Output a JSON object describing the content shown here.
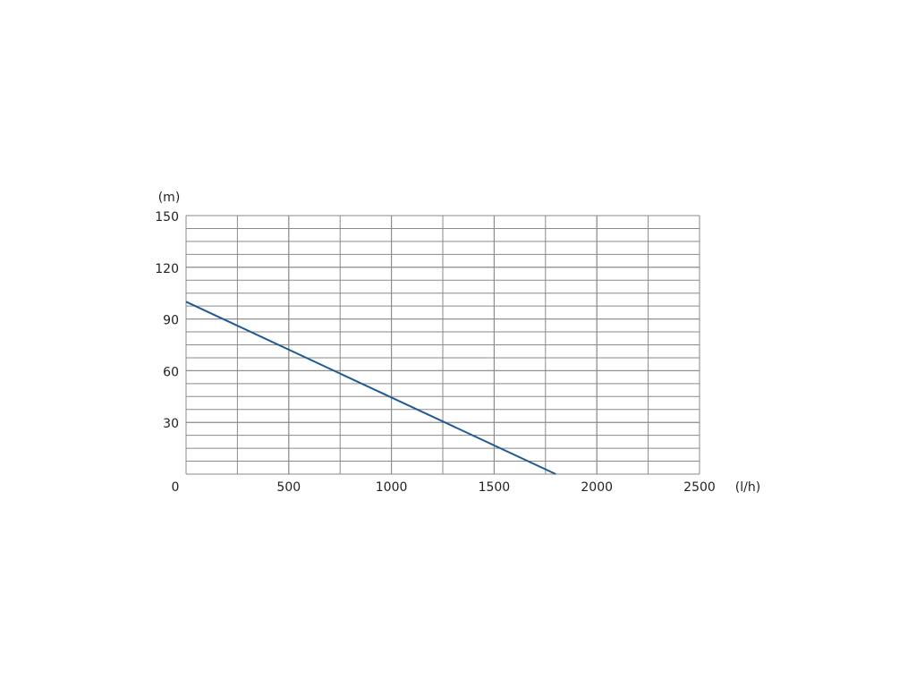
{
  "chart_data": {
    "type": "line",
    "y_unit": "(m)",
    "x_unit": "(l/h)",
    "xlim": [
      0,
      2500
    ],
    "xticks": [
      0,
      500,
      1000,
      1500,
      2000,
      2500
    ],
    "ylim": [
      0,
      150
    ],
    "yticks": [
      30,
      60,
      90,
      120,
      150
    ],
    "grid": true,
    "x": [
      0,
      1800
    ],
    "series": [
      {
        "color": "#1f5b94",
        "values": [
          100,
          0
        ]
      }
    ]
  }
}
